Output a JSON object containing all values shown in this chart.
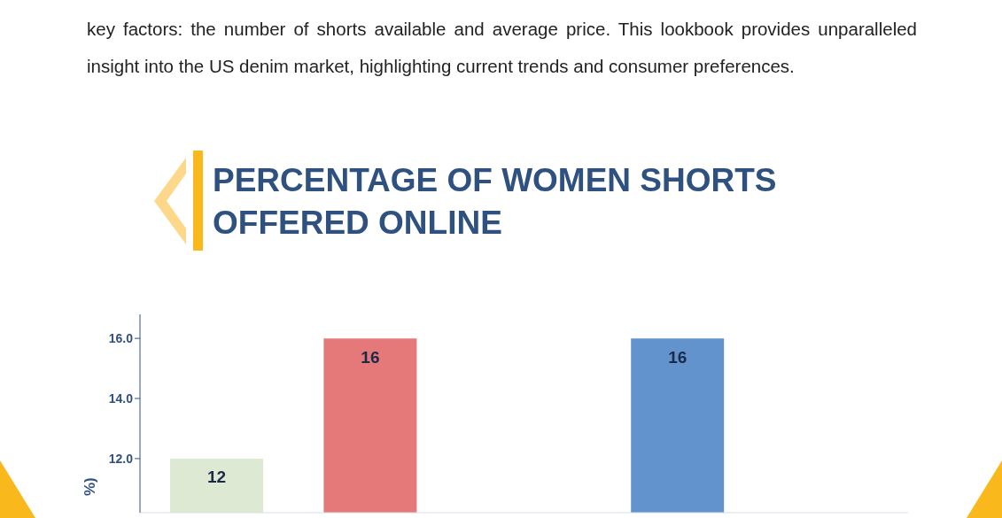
{
  "chart_data": {
    "type": "bar",
    "title": "PERCENTAGE OF WOMEN SHORTS OFFERED ONLINE",
    "ylabel": "%)",
    "annotations": [
      "key factors: the number of shorts available and average price. This lookbook provides unparalleled insight into the US denim market, highlighting current trends and consumer preferences."
    ],
    "categories": [
      null,
      null,
      null,
      null,
      null
    ],
    "values": [
      12,
      16,
      null,
      16,
      null
    ],
    "colors": [
      "#dde9d3",
      "#e57878",
      null,
      "#6393cd",
      null
    ],
    "ylim": [
      10.2,
      16.8
    ],
    "yticks": [
      {
        "value": 12,
        "label": "12.0"
      },
      {
        "value": 14,
        "label": "14.0"
      },
      {
        "value": 16,
        "label": "16.0"
      }
    ],
    "data_labels": true,
    "tick_labels": "y"
  }
}
